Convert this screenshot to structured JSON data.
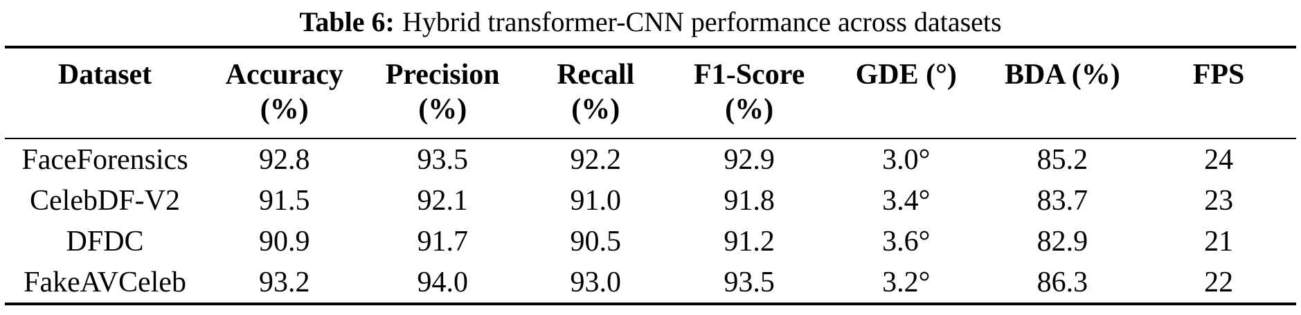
{
  "caption": {
    "label": "Table 6:",
    "text": "Hybrid transformer-CNN performance across datasets"
  },
  "table": {
    "columns": [
      {
        "id": "dataset",
        "line1": "Dataset",
        "line2": ""
      },
      {
        "id": "accuracy",
        "line1": "Accuracy",
        "line2": "(%)"
      },
      {
        "id": "precision",
        "line1": "Precision",
        "line2": "(%)"
      },
      {
        "id": "recall",
        "line1": "Recall",
        "line2": "(%)"
      },
      {
        "id": "f1-score",
        "line1": "F1-Score",
        "line2": "(%)"
      },
      {
        "id": "gde",
        "line1": "GDE (°)",
        "line2": ""
      },
      {
        "id": "bda",
        "line1": "BDA (%)",
        "line2": ""
      },
      {
        "id": "fps",
        "line1": "FPS",
        "line2": ""
      }
    ],
    "rows": [
      [
        "FaceForensics",
        "92.8",
        "93.5",
        "92.2",
        "92.9",
        "3.0°",
        "85.2",
        "24"
      ],
      [
        "CelebDF-V2",
        "91.5",
        "92.1",
        "91.0",
        "91.8",
        "3.4°",
        "83.7",
        "23"
      ],
      [
        "DFDC",
        "90.9",
        "91.7",
        "90.5",
        "91.2",
        "3.6°",
        "82.9",
        "21"
      ],
      [
        "FakeAVCeleb",
        "93.2",
        "94.0",
        "93.0",
        "93.5",
        "3.2°",
        "86.3",
        "22"
      ]
    ],
    "rule_color": "#000000",
    "text_color": "#000000",
    "background_color": "#ffffff"
  }
}
